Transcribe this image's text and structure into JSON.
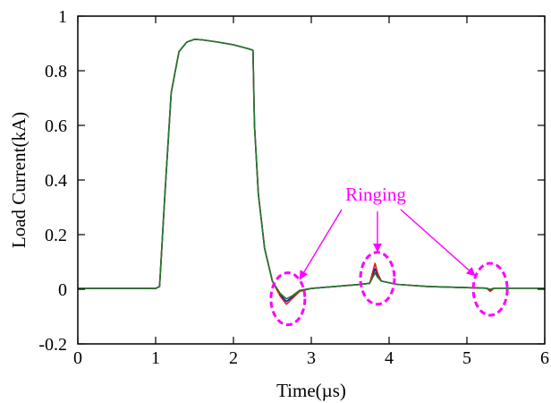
{
  "chart_data": {
    "type": "line",
    "title": "",
    "xlabel": "Time(µs)",
    "ylabel": "Load Current(kA)",
    "xlim": [
      0,
      6
    ],
    "ylim": [
      -0.2,
      1
    ],
    "x_ticks": [
      0,
      1,
      2,
      3,
      4,
      5,
      6
    ],
    "x_tick_labels": [
      "0",
      "1",
      "2",
      "3",
      "4",
      "5",
      "6"
    ],
    "y_ticks": [
      -0.2,
      0,
      0.2,
      0.4,
      0.6,
      0.8,
      1
    ],
    "y_tick_labels": [
      "-0.2",
      "0",
      "0.2",
      "0.4",
      "0.6",
      "0.8",
      "1"
    ],
    "grid": false,
    "series": [
      {
        "color": "#1a1aa8",
        "points": [
          [
            0,
            0.003
          ],
          [
            1.0,
            0.003
          ],
          [
            1.05,
            0.01
          ],
          [
            1.12,
            0.35
          ],
          [
            1.2,
            0.72
          ],
          [
            1.3,
            0.87
          ],
          [
            1.4,
            0.905
          ],
          [
            1.5,
            0.915
          ],
          [
            1.6,
            0.913
          ],
          [
            1.8,
            0.905
          ],
          [
            2.0,
            0.895
          ],
          [
            2.2,
            0.88
          ],
          [
            2.25,
            0.875
          ],
          [
            2.27,
            0.6
          ],
          [
            2.32,
            0.35
          ],
          [
            2.4,
            0.15
          ],
          [
            2.5,
            0.03
          ],
          [
            2.6,
            -0.02
          ],
          [
            2.68,
            -0.045
          ],
          [
            2.75,
            -0.03
          ],
          [
            2.85,
            -0.005
          ],
          [
            3.0,
            0.003
          ],
          [
            3.3,
            0.01
          ],
          [
            3.6,
            0.017
          ],
          [
            3.75,
            0.022
          ],
          [
            3.82,
            0.075
          ],
          [
            3.85,
            0.05
          ],
          [
            3.9,
            0.03
          ],
          [
            4.1,
            0.018
          ],
          [
            4.5,
            0.01
          ],
          [
            5.0,
            0.006
          ],
          [
            5.25,
            0.004
          ],
          [
            5.3,
            -0.002
          ],
          [
            5.35,
            0.004
          ],
          [
            6,
            0.004
          ]
        ]
      },
      {
        "color": "#d42020",
        "points": [
          [
            0,
            0.003
          ],
          [
            1.0,
            0.003
          ],
          [
            1.05,
            0.01
          ],
          [
            1.12,
            0.35
          ],
          [
            1.2,
            0.72
          ],
          [
            1.3,
            0.87
          ],
          [
            1.4,
            0.905
          ],
          [
            1.5,
            0.915
          ],
          [
            1.6,
            0.913
          ],
          [
            1.8,
            0.905
          ],
          [
            2.0,
            0.895
          ],
          [
            2.2,
            0.88
          ],
          [
            2.25,
            0.875
          ],
          [
            2.27,
            0.6
          ],
          [
            2.32,
            0.35
          ],
          [
            2.4,
            0.15
          ],
          [
            2.5,
            0.03
          ],
          [
            2.6,
            -0.025
          ],
          [
            2.68,
            -0.055
          ],
          [
            2.75,
            -0.035
          ],
          [
            2.85,
            -0.008
          ],
          [
            3.0,
            0.003
          ],
          [
            3.3,
            0.01
          ],
          [
            3.6,
            0.017
          ],
          [
            3.75,
            0.022
          ],
          [
            3.82,
            0.095
          ],
          [
            3.85,
            0.06
          ],
          [
            3.9,
            0.03
          ],
          [
            4.1,
            0.018
          ],
          [
            4.5,
            0.01
          ],
          [
            5.0,
            0.006
          ],
          [
            5.25,
            0.004
          ],
          [
            5.3,
            -0.008
          ],
          [
            5.35,
            0.004
          ],
          [
            6,
            0.004
          ]
        ]
      },
      {
        "color": "#1e7a2e",
        "points": [
          [
            0,
            0.003
          ],
          [
            1.0,
            0.003
          ],
          [
            1.05,
            0.01
          ],
          [
            1.12,
            0.35
          ],
          [
            1.2,
            0.72
          ],
          [
            1.3,
            0.87
          ],
          [
            1.4,
            0.905
          ],
          [
            1.5,
            0.915
          ],
          [
            1.6,
            0.913
          ],
          [
            1.8,
            0.905
          ],
          [
            2.0,
            0.895
          ],
          [
            2.2,
            0.88
          ],
          [
            2.25,
            0.875
          ],
          [
            2.27,
            0.6
          ],
          [
            2.32,
            0.35
          ],
          [
            2.4,
            0.15
          ],
          [
            2.5,
            0.03
          ],
          [
            2.6,
            -0.015
          ],
          [
            2.68,
            -0.035
          ],
          [
            2.75,
            -0.025
          ],
          [
            2.85,
            -0.004
          ],
          [
            3.0,
            0.003
          ],
          [
            3.3,
            0.01
          ],
          [
            3.6,
            0.017
          ],
          [
            3.75,
            0.022
          ],
          [
            3.82,
            0.06
          ],
          [
            3.85,
            0.045
          ],
          [
            3.9,
            0.03
          ],
          [
            4.1,
            0.018
          ],
          [
            4.5,
            0.01
          ],
          [
            5.0,
            0.006
          ],
          [
            5.25,
            0.004
          ],
          [
            5.3,
            0.0
          ],
          [
            5.35,
            0.004
          ],
          [
            6,
            0.004
          ]
        ]
      }
    ],
    "annotation": {
      "text": "Ringing",
      "color": "#ff00ff",
      "targets": [
        [
          2.7,
          -0.035
        ],
        [
          3.85,
          0.04
        ],
        [
          5.3,
          0.0
        ]
      ]
    }
  }
}
